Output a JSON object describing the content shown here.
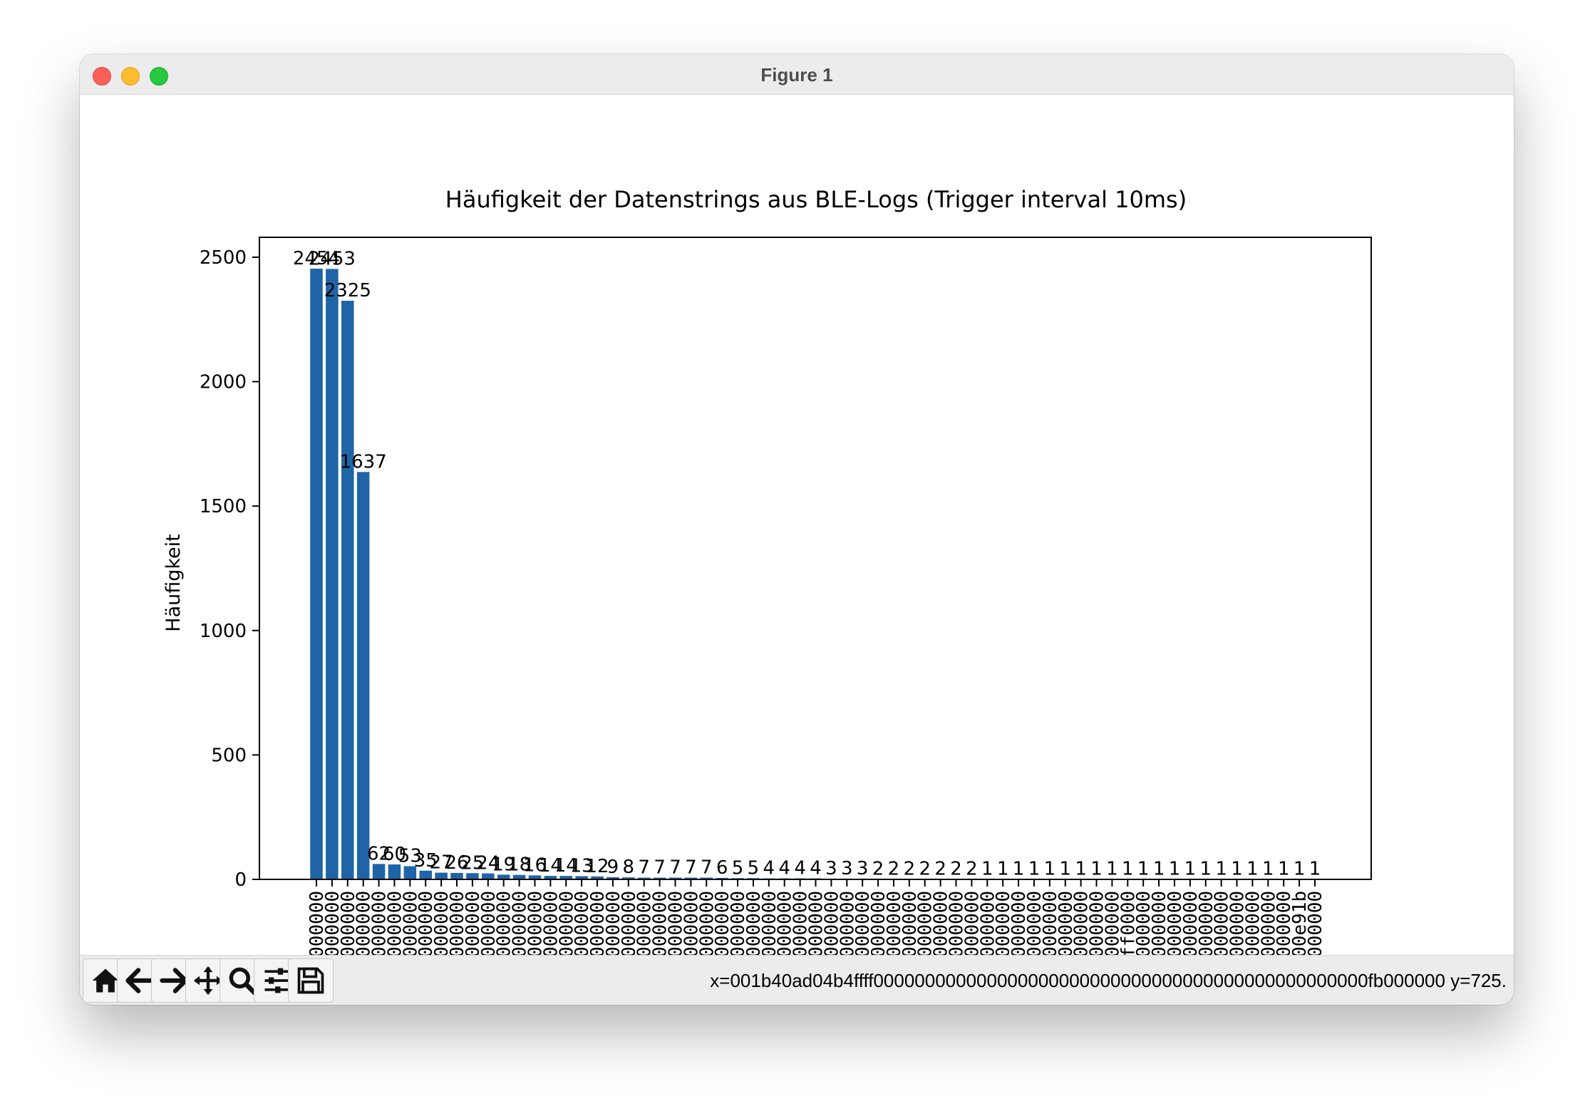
{
  "window": {
    "title": "Figure 1"
  },
  "toolbar": {
    "buttons": [
      {
        "name": "home-icon",
        "icon": "home"
      },
      {
        "name": "back-icon",
        "icon": "arrow-left"
      },
      {
        "name": "forward-icon",
        "icon": "arrow-right"
      },
      {
        "name": "pan-icon",
        "icon": "move"
      },
      {
        "name": "zoom-icon",
        "icon": "magnifier"
      },
      {
        "name": "configure-subplots-icon",
        "icon": "sliders"
      },
      {
        "name": "save-icon",
        "icon": "floppy-disk"
      }
    ],
    "coordinates": "x=001b40ad04b4ffff000000000000000000000000000000000000000000000000fb000000 y=725."
  },
  "chart_data": {
    "type": "bar",
    "title": "Häufigkeit der Datenstrings aus BLE-Logs (Trigger interval 10ms)",
    "xlabel": "",
    "ylabel": "Häufigkeit",
    "ylim": [
      0,
      2580
    ],
    "yticks": [
      0,
      500,
      1000,
      1500,
      2000,
      2500
    ],
    "bar_color": "#1f64a6",
    "values": [
      2454,
      2453,
      2325,
      1637,
      62,
      60,
      53,
      35,
      27,
      26,
      25,
      24,
      19,
      18,
      16,
      14,
      14,
      13,
      12,
      9,
      8,
      7,
      7,
      7,
      7,
      7,
      6,
      5,
      5,
      4,
      4,
      4,
      4,
      3,
      3,
      3,
      2,
      2,
      2,
      2,
      2,
      2,
      2,
      1,
      1,
      1,
      1,
      1,
      1,
      1,
      1,
      1,
      1,
      1,
      1,
      1,
      1,
      1,
      1,
      1,
      1,
      1,
      1,
      1,
      1
    ],
    "x_tick_labels_visible": [
      "000000",
      "000000",
      "000000",
      "000000",
      "000000",
      "000000",
      "000000",
      "000000",
      "000000",
      "000000",
      "000000",
      "000000",
      "000000",
      "000000",
      "000000",
      "000000",
      "000000",
      "000000",
      "000000",
      "000000",
      "000000",
      "000000",
      "000000",
      "000000",
      "000000",
      "000000",
      "000000",
      "000000",
      "000000",
      "000000",
      "000000",
      "000000",
      "000000",
      "000000",
      "000000",
      "000000",
      "000000",
      "000000",
      "000000",
      "000000",
      "000000",
      "000000",
      "000000",
      "000000",
      "000000",
      "000000",
      "000000",
      "000000",
      "000000",
      "000000",
      "000000",
      "000000",
      "ff0000",
      "000000",
      "000000",
      "000000",
      "000000",
      "000000",
      "000000",
      "000000",
      "000000",
      "000000",
      "000000",
      "00e91b",
      "000000"
    ]
  }
}
